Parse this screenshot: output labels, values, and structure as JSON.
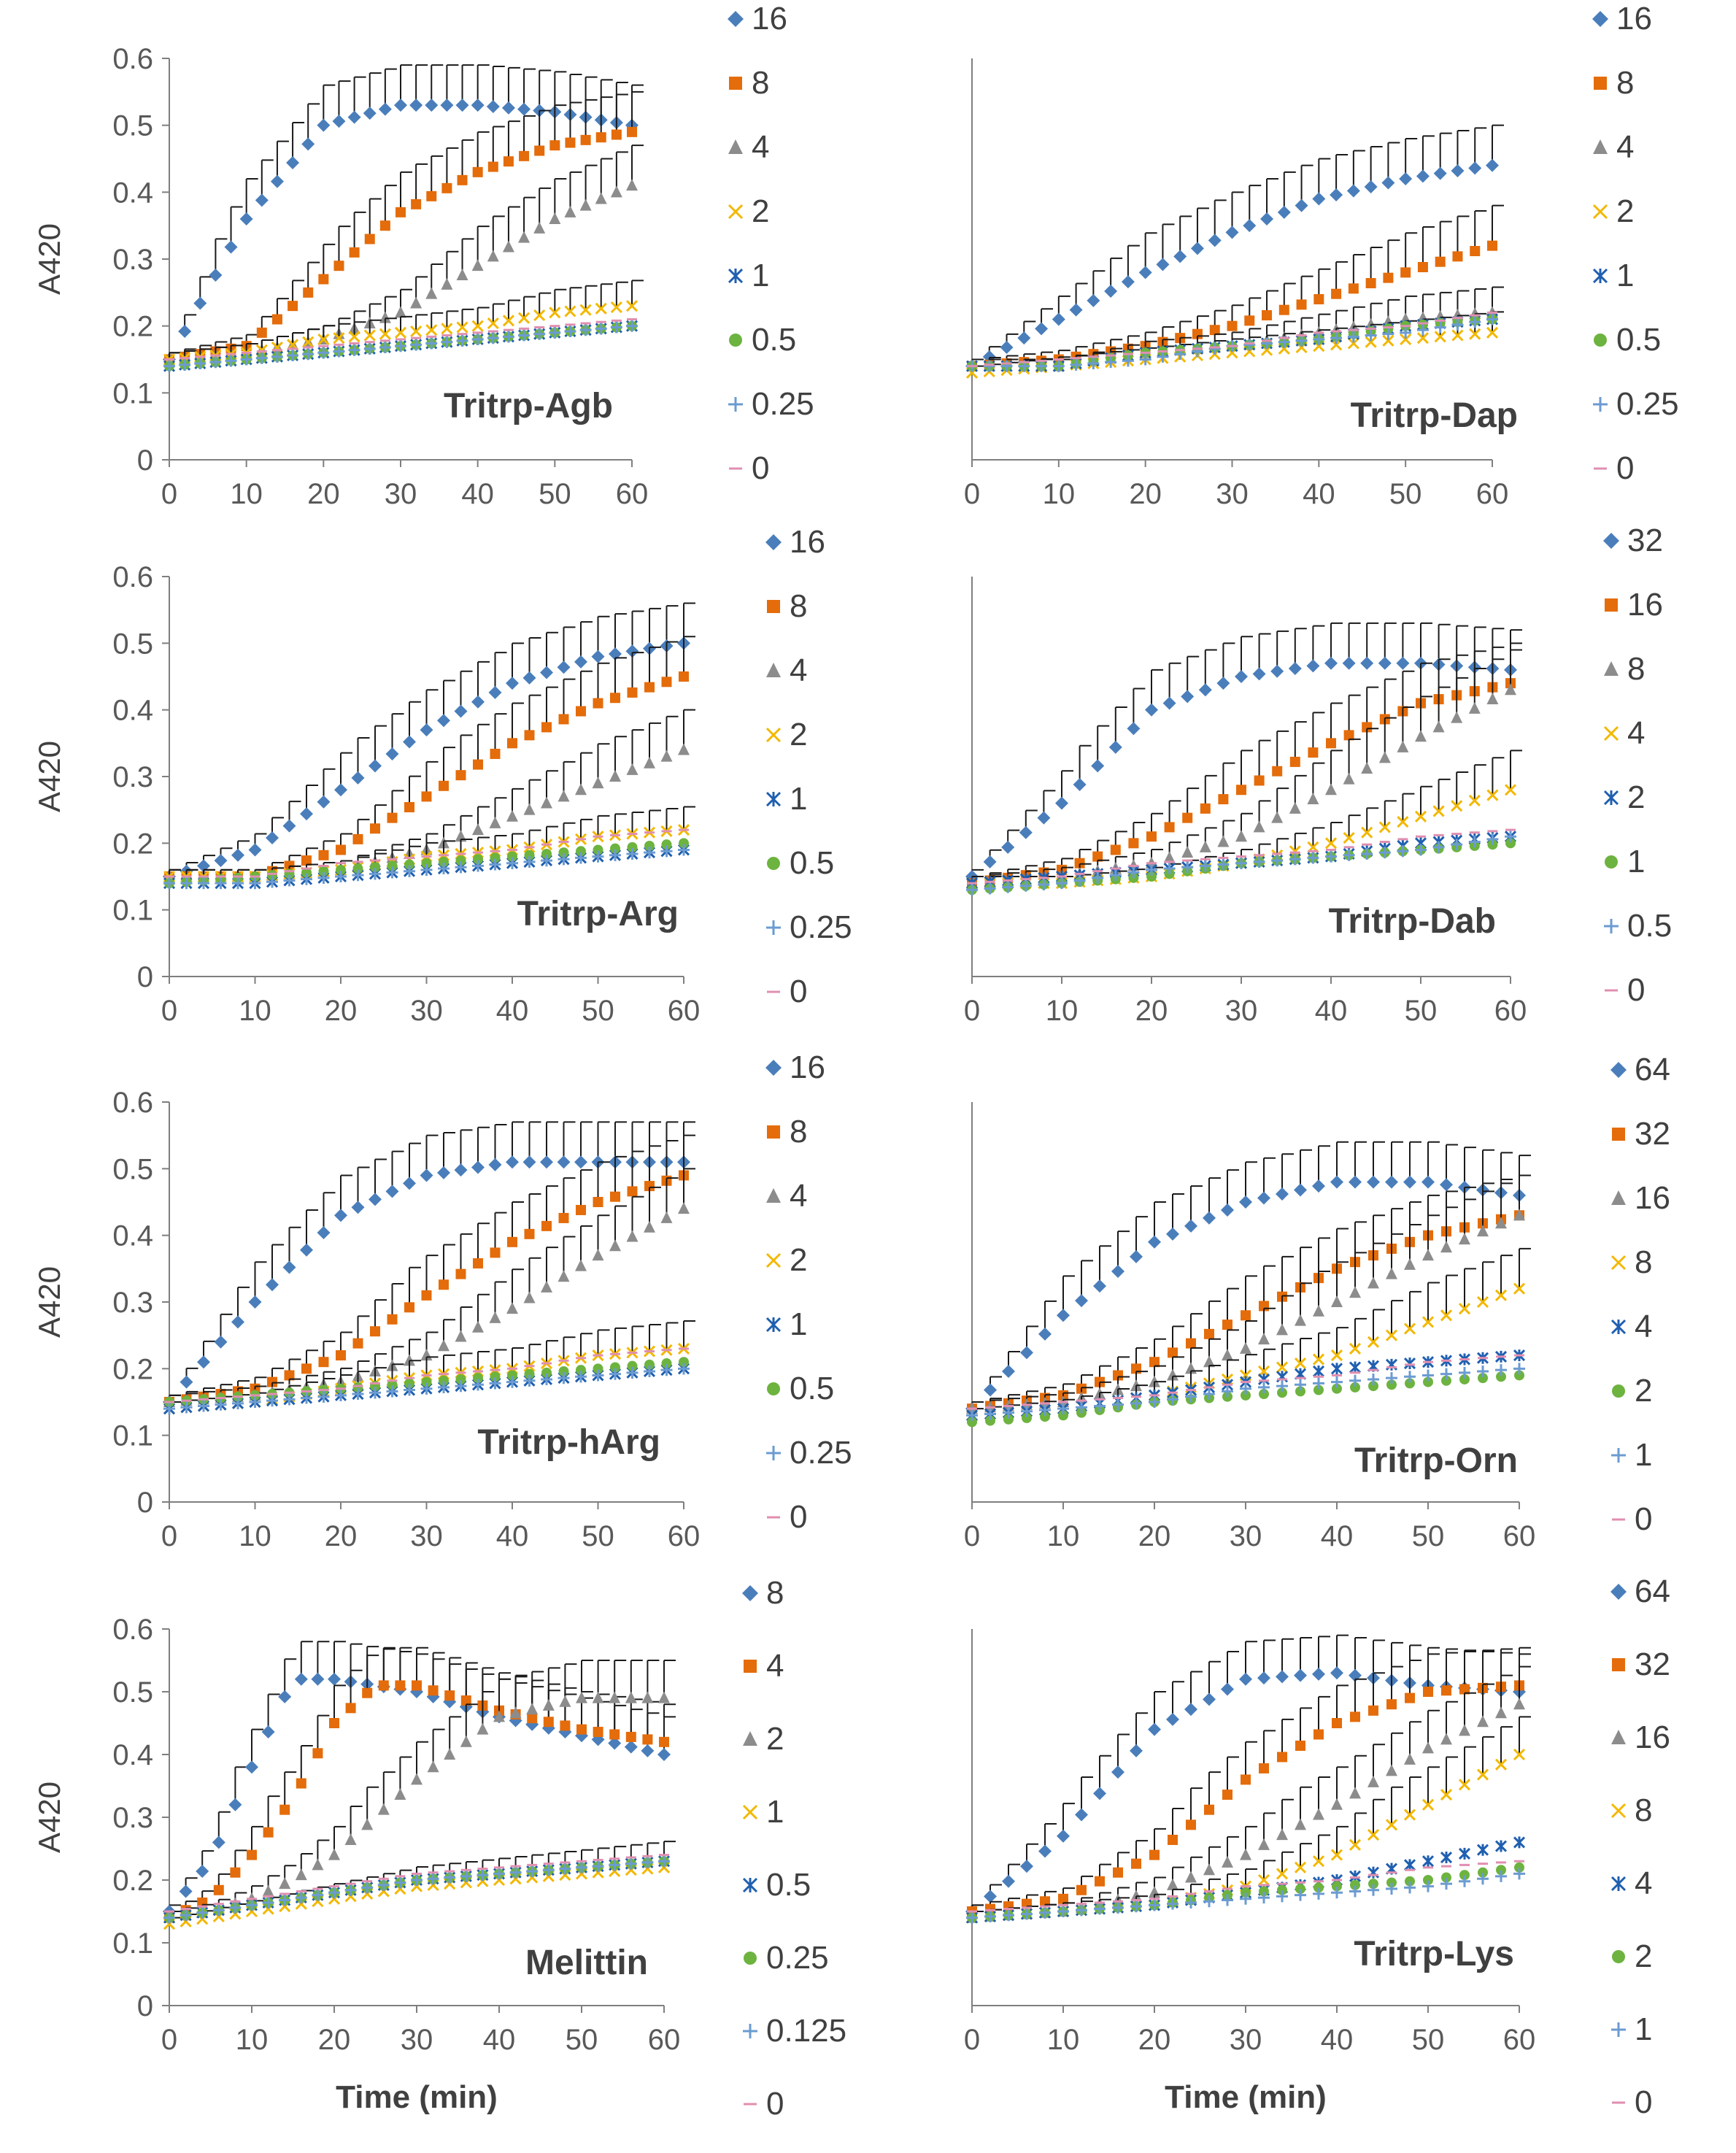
{
  "figure": {
    "y_axis_label": "A420",
    "x_axis_label": "Time (min)"
  },
  "series_colors": [
    "#4a7ebb",
    "#e46c0a",
    "#8c8c8c",
    "#f2b800",
    "#1f5fb0",
    "#6db33f",
    "#6b9bd1",
    "#e08fb0"
  ],
  "series_markers": [
    "diamond",
    "square",
    "triangle",
    "x",
    "asterisk",
    "circle",
    "plus",
    "dash"
  ],
  "chart_data": [
    {
      "type": "line",
      "title": "Tritrp-Agb",
      "xlabel": "",
      "ylabel": "A420",
      "xlim": [
        0,
        60
      ],
      "ylim": [
        0,
        0.6
      ],
      "x_ticks": [
        "0",
        "10",
        "20",
        "30",
        "40",
        "50",
        "60"
      ],
      "y_ticks": [
        "0",
        "0.1",
        "0.2",
        "0.3",
        "0.4",
        "0.5",
        "0.6"
      ],
      "error_bars": true,
      "x": [
        0,
        10,
        20,
        30,
        40,
        50,
        60
      ],
      "series": [
        {
          "name": "16",
          "values": [
            0.15,
            0.36,
            0.5,
            0.53,
            0.53,
            0.52,
            0.5
          ]
        },
        {
          "name": "8",
          "values": [
            0.15,
            0.17,
            0.27,
            0.37,
            0.43,
            0.47,
            0.49
          ]
        },
        {
          "name": "4",
          "values": [
            0.15,
            0.16,
            0.18,
            0.22,
            0.29,
            0.36,
            0.41
          ]
        },
        {
          "name": "2",
          "values": [
            0.15,
            0.16,
            0.18,
            0.19,
            0.2,
            0.22,
            0.23
          ]
        },
        {
          "name": "1",
          "values": [
            0.14,
            0.15,
            0.16,
            0.17,
            0.18,
            0.19,
            0.2
          ]
        },
        {
          "name": "0.5",
          "values": [
            0.14,
            0.15,
            0.16,
            0.17,
            0.18,
            0.19,
            0.2
          ]
        },
        {
          "name": "0.25",
          "values": [
            0.14,
            0.15,
            0.16,
            0.17,
            0.18,
            0.19,
            0.2
          ]
        },
        {
          "name": "0",
          "values": [
            0.15,
            0.16,
            0.17,
            0.18,
            0.19,
            0.2,
            0.21
          ]
        }
      ]
    },
    {
      "type": "line",
      "title": "Tritrp-Dap",
      "xlabel": "",
      "ylabel": "",
      "xlim": [
        0,
        60
      ],
      "ylim": [
        0,
        0.6
      ],
      "x_ticks": [
        "0",
        "10",
        "20",
        "30",
        "40",
        "50",
        "60"
      ],
      "y_ticks": [],
      "error_bars": true,
      "x": [
        0,
        10,
        20,
        30,
        40,
        50,
        60
      ],
      "series": [
        {
          "name": "16",
          "values": [
            0.14,
            0.21,
            0.28,
            0.34,
            0.39,
            0.42,
            0.44
          ]
        },
        {
          "name": "8",
          "values": [
            0.14,
            0.15,
            0.17,
            0.2,
            0.24,
            0.28,
            0.32
          ]
        },
        {
          "name": "4",
          "values": [
            0.14,
            0.14,
            0.16,
            0.17,
            0.19,
            0.21,
            0.22
          ]
        },
        {
          "name": "2",
          "values": [
            0.13,
            0.14,
            0.15,
            0.16,
            0.17,
            0.18,
            0.19
          ]
        },
        {
          "name": "1",
          "values": [
            0.14,
            0.14,
            0.16,
            0.17,
            0.18,
            0.2,
            0.21
          ]
        },
        {
          "name": "0.5",
          "values": [
            0.14,
            0.14,
            0.16,
            0.17,
            0.18,
            0.2,
            0.21
          ]
        },
        {
          "name": "0.25",
          "values": [
            0.14,
            0.14,
            0.15,
            0.17,
            0.18,
            0.19,
            0.21
          ]
        },
        {
          "name": "0",
          "values": [
            0.14,
            0.15,
            0.16,
            0.17,
            0.19,
            0.2,
            0.22
          ]
        }
      ]
    },
    {
      "type": "line",
      "title": "Tritrp-Arg",
      "xlabel": "",
      "ylabel": "A420",
      "xlim": [
        0,
        60
      ],
      "ylim": [
        0,
        0.6
      ],
      "x_ticks": [
        "0",
        "10",
        "20",
        "30",
        "40",
        "50",
        "60"
      ],
      "y_ticks": [
        "0",
        "0.1",
        "0.2",
        "0.3",
        "0.4",
        "0.5",
        "0.6"
      ],
      "error_bars": true,
      "x": [
        0,
        10,
        20,
        30,
        40,
        50,
        60
      ],
      "series": [
        {
          "name": "16",
          "values": [
            0.15,
            0.19,
            0.28,
            0.37,
            0.44,
            0.48,
            0.5
          ]
        },
        {
          "name": "8",
          "values": [
            0.15,
            0.15,
            0.19,
            0.27,
            0.35,
            0.41,
            0.45
          ]
        },
        {
          "name": "4",
          "values": [
            0.15,
            0.15,
            0.16,
            0.19,
            0.24,
            0.29,
            0.34
          ]
        },
        {
          "name": "2",
          "values": [
            0.15,
            0.15,
            0.16,
            0.18,
            0.19,
            0.21,
            0.22
          ]
        },
        {
          "name": "1",
          "values": [
            0.14,
            0.14,
            0.15,
            0.16,
            0.17,
            0.18,
            0.19
          ]
        },
        {
          "name": "0.5",
          "values": [
            0.14,
            0.15,
            0.16,
            0.17,
            0.18,
            0.19,
            0.2
          ]
        },
        {
          "name": "0.25",
          "values": [
            0.14,
            0.14,
            0.15,
            0.16,
            0.17,
            0.18,
            0.19
          ]
        },
        {
          "name": "0",
          "values": [
            0.15,
            0.15,
            0.17,
            0.18,
            0.19,
            0.21,
            0.22
          ]
        }
      ]
    },
    {
      "type": "line",
      "title": "Tritrp-Dab",
      "xlabel": "",
      "ylabel": "",
      "xlim": [
        0,
        60
      ],
      "ylim": [
        0,
        0.6
      ],
      "x_ticks": [
        "0",
        "10",
        "20",
        "30",
        "40",
        "50",
        "60"
      ],
      "y_ticks": [],
      "error_bars": true,
      "x": [
        0,
        10,
        20,
        30,
        40,
        50,
        60
      ],
      "series": [
        {
          "name": "32",
          "values": [
            0.15,
            0.26,
            0.4,
            0.45,
            0.47,
            0.47,
            0.46
          ]
        },
        {
          "name": "16",
          "values": [
            0.14,
            0.16,
            0.21,
            0.28,
            0.35,
            0.41,
            0.44
          ]
        },
        {
          "name": "8",
          "values": [
            0.14,
            0.15,
            0.17,
            0.21,
            0.28,
            0.36,
            0.43
          ]
        },
        {
          "name": "4",
          "values": [
            0.14,
            0.14,
            0.15,
            0.17,
            0.2,
            0.24,
            0.28
          ]
        },
        {
          "name": "2",
          "values": [
            0.14,
            0.15,
            0.16,
            0.17,
            0.18,
            0.2,
            0.21
          ]
        },
        {
          "name": "1",
          "values": [
            0.13,
            0.14,
            0.15,
            0.17,
            0.18,
            0.19,
            0.2
          ]
        },
        {
          "name": "0.5",
          "values": [
            0.13,
            0.14,
            0.16,
            0.17,
            0.18,
            0.19,
            0.21
          ]
        },
        {
          "name": "0",
          "values": [
            0.14,
            0.15,
            0.17,
            0.18,
            0.19,
            0.21,
            0.22
          ]
        }
      ]
    },
    {
      "type": "line",
      "title": "Tritrp-hArg",
      "xlabel": "",
      "ylabel": "A420",
      "xlim": [
        0,
        60
      ],
      "ylim": [
        0,
        0.6
      ],
      "x_ticks": [
        "0",
        "10",
        "20",
        "30",
        "40",
        "50",
        "60"
      ],
      "y_ticks": [
        "0",
        "0.1",
        "0.2",
        "0.3",
        "0.4",
        "0.5",
        "0.6"
      ],
      "error_bars": true,
      "x": [
        0,
        10,
        20,
        30,
        40,
        50,
        60
      ],
      "series": [
        {
          "name": "16",
          "values": [
            0.15,
            0.3,
            0.43,
            0.49,
            0.51,
            0.51,
            0.51
          ]
        },
        {
          "name": "8",
          "values": [
            0.15,
            0.17,
            0.22,
            0.31,
            0.39,
            0.45,
            0.49
          ]
        },
        {
          "name": "4",
          "values": [
            0.15,
            0.16,
            0.18,
            0.22,
            0.29,
            0.37,
            0.44
          ]
        },
        {
          "name": "2",
          "values": [
            0.14,
            0.15,
            0.17,
            0.19,
            0.2,
            0.22,
            0.23
          ]
        },
        {
          "name": "1",
          "values": [
            0.14,
            0.15,
            0.16,
            0.17,
            0.18,
            0.19,
            0.2
          ]
        },
        {
          "name": "0.5",
          "values": [
            0.15,
            0.16,
            0.17,
            0.18,
            0.19,
            0.2,
            0.21
          ]
        },
        {
          "name": "0.25",
          "values": [
            0.14,
            0.15,
            0.16,
            0.17,
            0.18,
            0.19,
            0.2
          ]
        },
        {
          "name": "0",
          "values": [
            0.15,
            0.16,
            0.17,
            0.19,
            0.2,
            0.22,
            0.23
          ]
        }
      ]
    },
    {
      "type": "line",
      "title": "Tritrp-Orn",
      "xlabel": "",
      "ylabel": "",
      "xlim": [
        0,
        60
      ],
      "ylim": [
        0,
        0.6
      ],
      "x_ticks": [
        "0",
        "10",
        "20",
        "30",
        "40",
        "50",
        "60"
      ],
      "y_ticks": [],
      "error_bars": true,
      "x": [
        0,
        10,
        20,
        30,
        40,
        50,
        60
      ],
      "series": [
        {
          "name": "64",
          "values": [
            0.14,
            0.28,
            0.39,
            0.45,
            0.48,
            0.48,
            0.46
          ]
        },
        {
          "name": "32",
          "values": [
            0.14,
            0.16,
            0.21,
            0.28,
            0.35,
            0.4,
            0.43
          ]
        },
        {
          "name": "16",
          "values": [
            0.14,
            0.15,
            0.18,
            0.23,
            0.3,
            0.37,
            0.43
          ]
        },
        {
          "name": "8",
          "values": [
            0.13,
            0.14,
            0.16,
            0.19,
            0.22,
            0.27,
            0.32
          ]
        },
        {
          "name": "4",
          "values": [
            0.13,
            0.14,
            0.16,
            0.18,
            0.2,
            0.21,
            0.22
          ]
        },
        {
          "name": "2",
          "values": [
            0.12,
            0.13,
            0.15,
            0.16,
            0.17,
            0.18,
            0.19
          ]
        },
        {
          "name": "1",
          "values": [
            0.13,
            0.14,
            0.15,
            0.17,
            0.18,
            0.19,
            0.2
          ]
        },
        {
          "name": "0",
          "values": [
            0.14,
            0.15,
            0.16,
            0.18,
            0.19,
            0.21,
            0.22
          ]
        }
      ]
    },
    {
      "type": "line",
      "title": "Melittin",
      "xlabel": "Time (min)",
      "ylabel": "A420",
      "xlim": [
        0,
        60
      ],
      "ylim": [
        0,
        0.6
      ],
      "x_ticks": [
        "0",
        "10",
        "20",
        "30",
        "40",
        "50",
        "60"
      ],
      "y_ticks": [
        "0",
        "0.1",
        "0.2",
        "0.3",
        "0.4",
        "0.5",
        "0.6"
      ],
      "error_bars": true,
      "x": [
        0,
        5,
        10,
        15,
        20,
        25,
        30,
        40,
        50,
        60
      ],
      "series": [
        {
          "name": "8",
          "values": [
            0.15,
            0.23,
            0.38,
            0.52,
            0.52,
            0.51,
            0.5,
            0.46,
            0.43,
            0.4
          ]
        },
        {
          "name": "4",
          "values": [
            0.14,
            0.17,
            0.24,
            0.33,
            0.45,
            0.51,
            0.51,
            0.47,
            0.44,
            0.42
          ]
        },
        {
          "name": "2",
          "values": [
            0.14,
            0.15,
            0.17,
            0.2,
            0.24,
            0.3,
            0.36,
            0.46,
            0.49,
            0.49
          ]
        },
        {
          "name": "1",
          "values": [
            0.13,
            0.14,
            0.15,
            0.16,
            0.17,
            0.18,
            0.19,
            0.2,
            0.21,
            0.22
          ]
        },
        {
          "name": "0.5",
          "values": [
            0.14,
            0.15,
            0.16,
            0.17,
            0.18,
            0.19,
            0.2,
            0.21,
            0.22,
            0.23
          ]
        },
        {
          "name": "0.25",
          "values": [
            0.14,
            0.15,
            0.16,
            0.17,
            0.18,
            0.19,
            0.2,
            0.21,
            0.22,
            0.23
          ]
        },
        {
          "name": "0.125",
          "values": [
            0.14,
            0.15,
            0.16,
            0.17,
            0.18,
            0.19,
            0.2,
            0.21,
            0.22,
            0.23
          ]
        },
        {
          "name": "0",
          "values": [
            0.15,
            0.16,
            0.17,
            0.18,
            0.19,
            0.2,
            0.21,
            0.22,
            0.23,
            0.24
          ]
        }
      ]
    },
    {
      "type": "line",
      "title": "Tritrp-Lys",
      "xlabel": "Time (min)",
      "ylabel": "",
      "xlim": [
        0,
        60
      ],
      "ylim": [
        0,
        0.6
      ],
      "x_ticks": [
        "0",
        "10",
        "20",
        "30",
        "40",
        "50",
        "60"
      ],
      "y_ticks": [],
      "error_bars": true,
      "x": [
        0,
        10,
        20,
        30,
        40,
        50,
        60
      ],
      "series": [
        {
          "name": "64",
          "values": [
            0.15,
            0.27,
            0.44,
            0.52,
            0.53,
            0.51,
            0.5
          ]
        },
        {
          "name": "32",
          "values": [
            0.15,
            0.17,
            0.24,
            0.36,
            0.45,
            0.5,
            0.51
          ]
        },
        {
          "name": "16",
          "values": [
            0.14,
            0.15,
            0.18,
            0.24,
            0.32,
            0.41,
            0.48
          ]
        },
        {
          "name": "8",
          "values": [
            0.14,
            0.15,
            0.16,
            0.19,
            0.24,
            0.32,
            0.4
          ]
        },
        {
          "name": "4",
          "values": [
            0.14,
            0.15,
            0.16,
            0.18,
            0.2,
            0.23,
            0.26
          ]
        },
        {
          "name": "2",
          "values": [
            0.14,
            0.15,
            0.16,
            0.18,
            0.19,
            0.2,
            0.22
          ]
        },
        {
          "name": "1",
          "values": [
            0.14,
            0.15,
            0.16,
            0.17,
            0.18,
            0.19,
            0.21
          ]
        },
        {
          "name": "0",
          "values": [
            0.15,
            0.16,
            0.17,
            0.19,
            0.2,
            0.22,
            0.23
          ]
        }
      ]
    }
  ]
}
